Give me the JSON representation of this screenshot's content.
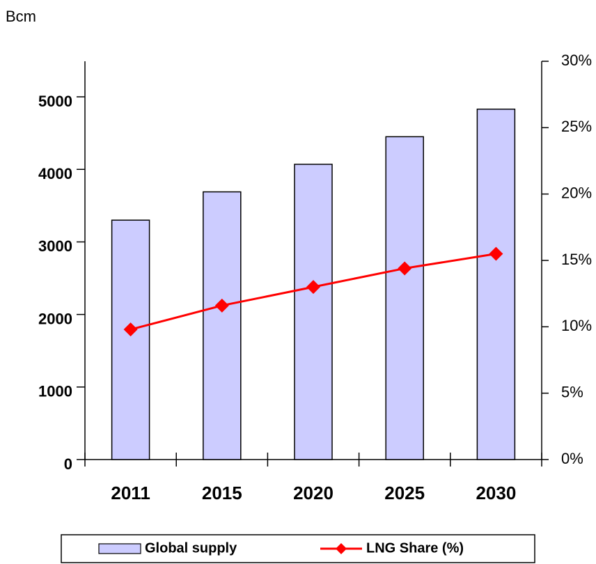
{
  "chart_data": {
    "type": "bar_line",
    "ylabel": "Bcm",
    "categories": [
      "2011",
      "2015",
      "2020",
      "2025",
      "2030"
    ],
    "series": [
      {
        "name": "Global supply",
        "type": "bar",
        "color": "#ccccff",
        "values": [
          3300,
          3690,
          4070,
          4450,
          4830
        ]
      },
      {
        "name": "LNG Share (%)",
        "type": "line",
        "axis": "y2",
        "color": "#ff0000",
        "values": [
          9.8,
          11.6,
          13.0,
          14.4,
          15.5
        ]
      }
    ],
    "ylim": [
      0,
      5490
    ],
    "yticks": [
      0,
      1000,
      2000,
      3000,
      4000,
      5000
    ],
    "y2lim": [
      0,
      30
    ],
    "y2ticks": [
      {
        "value": 0,
        "label": "0%"
      },
      {
        "value": 5,
        "label": "5%"
      },
      {
        "value": 10,
        "label": "10%"
      },
      {
        "value": 15,
        "label": "15%"
      },
      {
        "value": 20,
        "label": "20%"
      },
      {
        "value": 25,
        "label": "25%"
      },
      {
        "value": 30,
        "label": "30%"
      }
    ],
    "legend": "bottom"
  }
}
